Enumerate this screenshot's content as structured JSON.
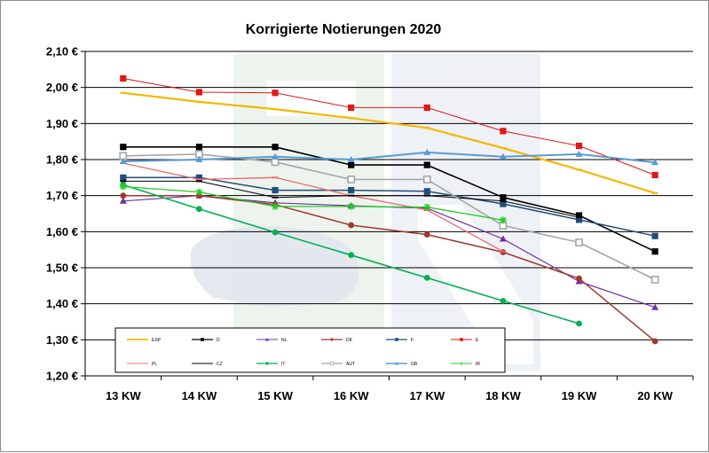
{
  "chart_data": {
    "type": "line",
    "title": "Korrigierte Notierungen 2020",
    "xlabel": "",
    "ylabel": "",
    "categories": [
      "13 KW",
      "14 KW",
      "15 KW",
      "16 KW",
      "17 KW",
      "18 KW",
      "19 KW",
      "20 KW"
    ],
    "ylim": [
      1.2,
      2.1
    ],
    "yticks": [
      1.2,
      1.3,
      1.4,
      1.5,
      1.6,
      1.7,
      1.8,
      1.9,
      2.0,
      2.1
    ],
    "ytick_labels": [
      "1,20 €",
      "1,30 €",
      "1,40 €",
      "1,50 €",
      "1,60 €",
      "1,70 €",
      "1,80 €",
      "1,90 €",
      "2,00 €",
      "2,10 €"
    ],
    "grid": "horizontal",
    "legend_position": "bottom-left inside",
    "series": [
      {
        "name": "ESP",
        "color": "#f5b800",
        "marker": "dash",
        "width": 2.2,
        "values": [
          1.985,
          1.96,
          1.94,
          1.915,
          1.888,
          1.832,
          1.772,
          1.707
        ]
      },
      {
        "name": "D",
        "color": "#000000",
        "marker": "square",
        "width": 1.6,
        "values": [
          1.835,
          1.835,
          1.835,
          1.785,
          1.785,
          1.695,
          1.645,
          1.545
        ]
      },
      {
        "name": "NL",
        "color": "#7030a0",
        "marker": "triangle",
        "width": 1.2,
        "values": [
          1.685,
          1.7,
          1.68,
          1.672,
          1.665,
          1.58,
          1.462,
          1.39
        ]
      },
      {
        "name": "DK",
        "color": "#a0382c",
        "marker": "circle",
        "width": 1.5,
        "values": [
          1.7,
          1.7,
          1.675,
          1.618,
          1.592,
          1.543,
          1.47,
          1.296
        ]
      },
      {
        "name": "F",
        "color": "#1f4e79",
        "marker": "square",
        "width": 1.5,
        "values": [
          1.75,
          1.75,
          1.715,
          1.715,
          1.712,
          1.677,
          1.633,
          1.588
        ]
      },
      {
        "name": "E",
        "color": "#e01818",
        "marker": "square",
        "width": 1.0,
        "values": [
          2.025,
          1.987,
          1.985,
          1.944,
          1.944,
          1.879,
          1.838,
          1.757
        ]
      },
      {
        "name": "PL",
        "color": "#f06870",
        "marker": "dash",
        "width": 1.3,
        "values": [
          1.79,
          1.745,
          1.75,
          1.7,
          1.66,
          1.545,
          null,
          null
        ]
      },
      {
        "name": "CZ",
        "color": "#000000",
        "marker": "dash",
        "width": 1.0,
        "values": [
          1.74,
          1.74,
          1.695,
          1.7,
          1.7,
          1.685,
          1.64,
          null
        ]
      },
      {
        "name": "IT",
        "color": "#00b050",
        "marker": "circle",
        "width": 1.6,
        "values": [
          1.73,
          1.663,
          1.598,
          1.535,
          1.472,
          1.408,
          1.345,
          null
        ]
      },
      {
        "name": "AUT",
        "color": "#a6a6a6",
        "marker": "hollow-square",
        "width": 1.6,
        "values": [
          1.81,
          1.815,
          1.793,
          1.745,
          1.745,
          1.617,
          1.57,
          1.467
        ]
      },
      {
        "name": "GB",
        "color": "#5b9bd5",
        "marker": "triangle",
        "width": 2.0,
        "values": [
          1.795,
          1.8,
          1.808,
          1.8,
          1.82,
          1.808,
          1.815,
          1.792
        ]
      },
      {
        "name": "IR",
        "color": "#22cc22",
        "marker": "asterisk",
        "width": 1.3,
        "values": [
          1.725,
          1.71,
          1.67,
          1.67,
          1.668,
          1.632,
          null,
          null
        ]
      }
    ]
  }
}
